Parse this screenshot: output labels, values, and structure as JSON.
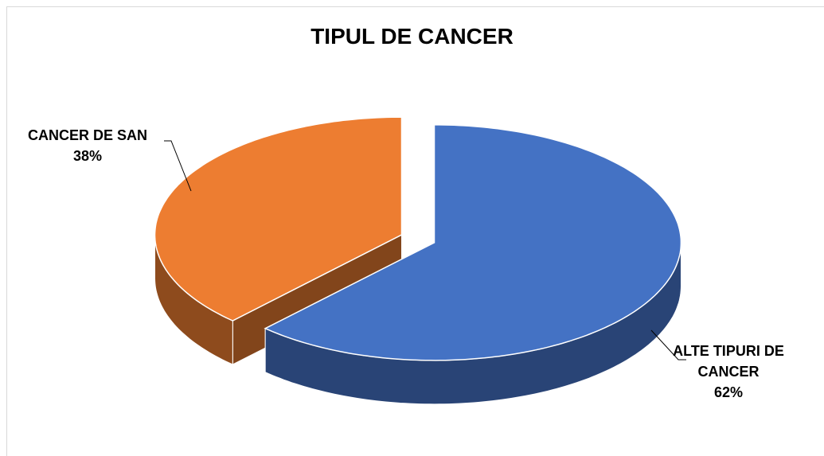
{
  "chart_data": {
    "type": "pie",
    "title": "TIPUL DE CANCER",
    "categories": [
      "ALTE TIPURI DE CANCER",
      "CANCER DE SAN"
    ],
    "values": [
      62,
      38
    ],
    "value_labels": [
      "62%",
      "38%"
    ],
    "colors": [
      "#4472c4",
      "#ed7d31"
    ]
  }
}
